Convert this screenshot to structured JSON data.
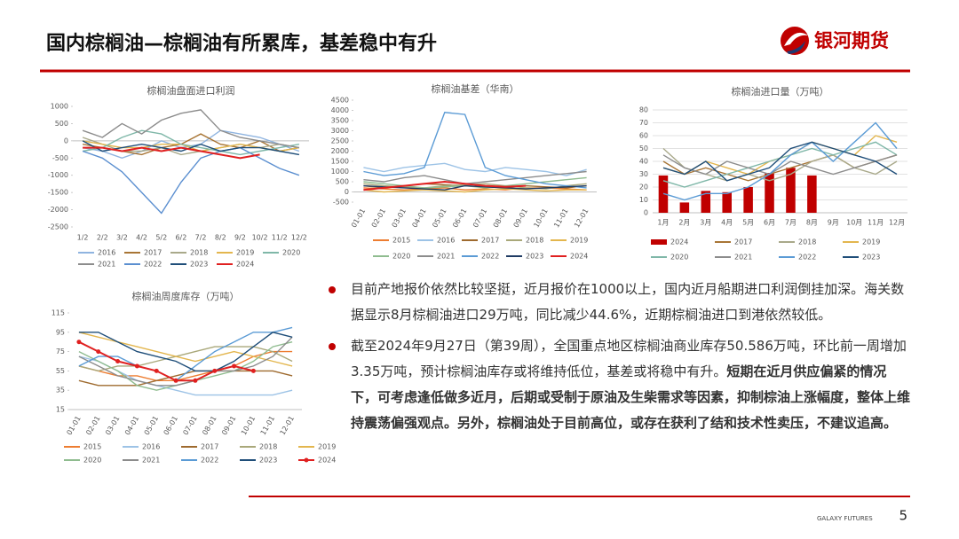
{
  "header": {
    "title": "国内棕榈油—棕榈油有所累库，基差稳中有升",
    "logo": "银河期货"
  },
  "bullets": [
    {
      "text": "目前产地报价依然比较坚挺，近月报价在1000以上，国内近月船期进口利润倒挂加深。海关数据显示8月棕榈油进口29万吨，同比减少44.6%，近期棕榈油进口到港依然较低。"
    },
    {
      "text": "截至2024年9月27日（第39周），全国重点地区棕榈油商业库存50.586万吨，环比前一周增加3.35万吨，预计棕榈油库存或将维持低位，基差或将稳中有升。",
      "bold": "短期在近月供应偏紧的情况下，可考虑逢低做多近月，后期或受制于原油及生柴需求等因素，抑制棕油上涨幅度，整体上维持震荡偏强观点。另外，棕榈油处于目前高位，或存在获利了结和技术性卖压，不建议追高。"
    }
  ],
  "footer": {
    "brand": "GALAXY FUTURES",
    "page": "5"
  },
  "chart_data": [
    {
      "type": "line",
      "title": "棕榈油盘面进口利润",
      "categories": [
        "1/2",
        "2/2",
        "3/2",
        "4/2",
        "5/2",
        "6/2",
        "7/2",
        "8/2",
        "9/2",
        "10/2",
        "11/2",
        "12/2"
      ],
      "ylim": [
        -2500,
        1000
      ],
      "yticks": [
        1000,
        500,
        0,
        -500,
        -1000,
        -1500,
        -2000,
        -2500
      ],
      "grid": false,
      "series": [
        {
          "name": "2016",
          "color": "#8fb4e0",
          "values": [
            -200,
            -300,
            -500,
            -300,
            0,
            -200,
            -100,
            300,
            200,
            100,
            -100,
            -300
          ]
        },
        {
          "name": "2017",
          "color": "#a87535",
          "values": [
            -100,
            -200,
            -300,
            -400,
            -200,
            -100,
            200,
            -100,
            -200,
            0,
            -300,
            -200
          ]
        },
        {
          "name": "2018",
          "color": "#a9a98a",
          "values": [
            100,
            -100,
            -300,
            -300,
            -200,
            -400,
            -300,
            -200,
            -100,
            -200,
            -100,
            -200
          ]
        },
        {
          "name": "2019",
          "color": "#e3b64e",
          "values": [
            0,
            -100,
            -200,
            -200,
            -100,
            -100,
            -300,
            -200,
            -100,
            -200,
            -300,
            -200
          ]
        },
        {
          "name": "2020",
          "color": "#7fb7a8",
          "values": [
            -300,
            -200,
            100,
            300,
            200,
            -100,
            -200,
            -300,
            -400,
            -300,
            -200,
            -100
          ]
        },
        {
          "name": "2021",
          "color": "#8c8c8c",
          "values": [
            300,
            100,
            500,
            200,
            600,
            800,
            900,
            300,
            100,
            0,
            -100,
            -200
          ]
        },
        {
          "name": "2022",
          "color": "#5b8fd0",
          "values": [
            -300,
            -500,
            -900,
            -1500,
            -2100,
            -1200,
            -500,
            -300,
            -200,
            -500,
            -800,
            -1000
          ]
        },
        {
          "name": "2023",
          "color": "#1f4e79",
          "values": [
            0,
            -300,
            -200,
            -100,
            -200,
            -300,
            -100,
            -300,
            -200,
            -200,
            -300,
            -400
          ]
        },
        {
          "name": "2024",
          "color": "#e02020",
          "values": [
            -200,
            -200,
            -300,
            -200,
            -300,
            -200,
            -300,
            -400,
            -500,
            -400,
            null,
            null
          ]
        }
      ]
    },
    {
      "type": "line",
      "title": "棕榈油基差（华南）",
      "categories": [
        "01-01",
        "02-01",
        "03-01",
        "04-01",
        "05-01",
        "06-01",
        "07-01",
        "08-01",
        "09-01",
        "10-01",
        "11-01",
        "12-01"
      ],
      "ylim": [
        -500,
        4500
      ],
      "yticks": [
        4500,
        4000,
        3500,
        3000,
        2500,
        2000,
        1500,
        1000,
        500,
        0,
        -500
      ],
      "grid": false,
      "series": [
        {
          "name": "2015",
          "color": "#ed7d31",
          "values": [
            200,
            150,
            100,
            150,
            200,
            100,
            150,
            100,
            200,
            200,
            150,
            100
          ]
        },
        {
          "name": "2016",
          "color": "#9dc3e6",
          "values": [
            1200,
            1000,
            1200,
            1300,
            1400,
            1100,
            1000,
            1200,
            1100,
            1000,
            800,
            1100
          ]
        },
        {
          "name": "2017",
          "color": "#9e6a2e",
          "values": [
            300,
            200,
            300,
            400,
            350,
            300,
            250,
            200,
            300,
            250,
            200,
            300
          ]
        },
        {
          "name": "2018",
          "color": "#a9a87a",
          "values": [
            400,
            300,
            250,
            200,
            300,
            350,
            400,
            300,
            200,
            150,
            300,
            400
          ]
        },
        {
          "name": "2019",
          "color": "#e3b64e",
          "values": [
            100,
            0,
            50,
            100,
            50,
            0,
            100,
            150,
            100,
            50,
            100,
            100
          ]
        },
        {
          "name": "2020",
          "color": "#8fbc8f",
          "values": [
            500,
            400,
            300,
            200,
            250,
            300,
            200,
            300,
            400,
            500,
            600,
            700
          ]
        },
        {
          "name": "2021",
          "color": "#8c8c8c",
          "values": [
            600,
            500,
            700,
            800,
            600,
            400,
            500,
            600,
            700,
            800,
            900,
            1000
          ]
        },
        {
          "name": "2022",
          "color": "#5b9bd5",
          "values": [
            1000,
            800,
            900,
            1200,
            3900,
            3800,
            1200,
            800,
            600,
            400,
            300,
            200
          ]
        },
        {
          "name": "2023",
          "color": "#1f3b63",
          "values": [
            300,
            250,
            200,
            150,
            100,
            300,
            250,
            200,
            150,
            200,
            250,
            300
          ]
        },
        {
          "name": "2024",
          "color": "#e02020",
          "values": [
            100,
            200,
            300,
            400,
            500,
            400,
            300,
            250,
            300,
            null,
            null,
            null
          ]
        }
      ]
    },
    {
      "type": "combo",
      "title": "棕榈油进口量（万吨）",
      "categories": [
        "1月",
        "2月",
        "3月",
        "4月",
        "5月",
        "6月",
        "7月",
        "8月",
        "9月",
        "10月",
        "11月",
        "12月"
      ],
      "ylim": [
        0,
        80
      ],
      "yticks": [
        0,
        10,
        20,
        30,
        40,
        50,
        60,
        70,
        80
      ],
      "grid": true,
      "series": [
        {
          "name": "2024",
          "color": "#c00000",
          "mark": "bar",
          "values": [
            29,
            8,
            17,
            16,
            20,
            31,
            35,
            29,
            null,
            null,
            null,
            null
          ]
        },
        {
          "name": "2017",
          "color": "#a87535",
          "values": [
            40,
            30,
            35,
            30,
            25,
            30,
            35,
            40,
            45,
            35,
            40,
            45
          ]
        },
        {
          "name": "2018",
          "color": "#a9a98a",
          "values": [
            50,
            35,
            30,
            25,
            30,
            25,
            30,
            40,
            45,
            35,
            30,
            40
          ]
        },
        {
          "name": "2019",
          "color": "#e3b64e",
          "values": [
            35,
            30,
            40,
            35,
            30,
            40,
            45,
            55,
            50,
            45,
            60,
            55
          ]
        },
        {
          "name": "2020",
          "color": "#7fb7a8",
          "values": [
            25,
            20,
            25,
            30,
            35,
            40,
            45,
            50,
            45,
            50,
            55,
            45
          ]
        },
        {
          "name": "2021",
          "color": "#8c8c8c",
          "values": [
            45,
            35,
            30,
            40,
            35,
            30,
            40,
            35,
            30,
            35,
            40,
            45
          ]
        },
        {
          "name": "2022",
          "color": "#5b9bd5",
          "values": [
            15,
            10,
            15,
            15,
            20,
            30,
            45,
            55,
            40,
            55,
            70,
            50
          ]
        },
        {
          "name": "2023",
          "color": "#1f4e79",
          "values": [
            35,
            30,
            40,
            25,
            30,
            35,
            50,
            55,
            50,
            45,
            40,
            30
          ]
        }
      ]
    },
    {
      "type": "line",
      "title": "棕榈油周度库存（万吨）",
      "categories": [
        "01-01",
        "02-01",
        "03-01",
        "04-01",
        "05-01",
        "06-01",
        "07-01",
        "08-01",
        "09-01",
        "10-01",
        "11-01",
        "12-01"
      ],
      "ylim": [
        15,
        115
      ],
      "yticks": [
        115,
        95,
        75,
        55,
        35,
        15
      ],
      "grid": false,
      "series": [
        {
          "name": "2015",
          "color": "#ed7d31",
          "values": [
            60,
            55,
            50,
            50,
            45,
            45,
            50,
            55,
            60,
            70,
            75,
            75
          ]
        },
        {
          "name": "2016",
          "color": "#9dc3e6",
          "values": [
            70,
            65,
            55,
            45,
            40,
            35,
            30,
            30,
            30,
            30,
            30,
            35
          ]
        },
        {
          "name": "2017",
          "color": "#9e6a2e",
          "values": [
            45,
            40,
            40,
            40,
            45,
            50,
            55,
            55,
            55,
            55,
            55,
            50
          ]
        },
        {
          "name": "2018",
          "color": "#a9a87a",
          "values": [
            60,
            55,
            60,
            60,
            65,
            70,
            75,
            80,
            80,
            80,
            75,
            65
          ]
        },
        {
          "name": "2019",
          "color": "#e3b64e",
          "values": [
            95,
            90,
            85,
            80,
            75,
            70,
            65,
            70,
            75,
            70,
            65,
            60
          ]
        },
        {
          "name": "2020",
          "color": "#8fbc8f",
          "values": [
            75,
            65,
            55,
            40,
            35,
            40,
            45,
            50,
            55,
            65,
            80,
            85
          ]
        },
        {
          "name": "2021",
          "color": "#8c8c8c",
          "values": [
            70,
            60,
            50,
            45,
            40,
            40,
            45,
            55,
            55,
            60,
            70,
            90
          ]
        },
        {
          "name": "2022",
          "color": "#5b9bd5",
          "values": [
            60,
            70,
            70,
            60,
            55,
            45,
            60,
            75,
            85,
            95,
            95,
            100
          ]
        },
        {
          "name": "2023",
          "color": "#1f4e79",
          "values": [
            95,
            95,
            85,
            75,
            70,
            65,
            55,
            55,
            65,
            80,
            95,
            90
          ]
        },
        {
          "name": "2024",
          "color": "#e02020",
          "markers": true,
          "values": [
            85,
            75,
            65,
            60,
            55,
            45,
            45,
            55,
            60,
            55,
            null,
            null
          ]
        }
      ]
    }
  ]
}
